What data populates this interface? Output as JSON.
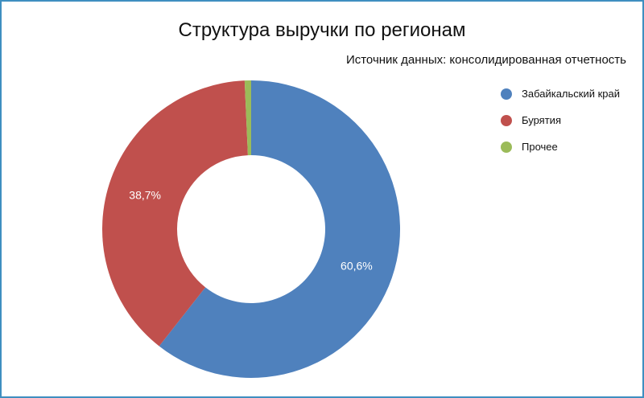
{
  "chart_data": {
    "type": "pie",
    "variant": "donut",
    "title": "Структура выручки по регионам",
    "subtitle": "Источник данных: консолидированная отчетность",
    "categories": [
      "Забайкальский край",
      "Бурятия",
      "Прочее"
    ],
    "values": [
      60.6,
      38.7,
      0.7
    ],
    "data_labels": [
      "60,6%",
      "38,7%",
      ""
    ],
    "colors": [
      "#4f81bd",
      "#c0504d",
      "#9bbb59"
    ],
    "legend_position": "right"
  }
}
